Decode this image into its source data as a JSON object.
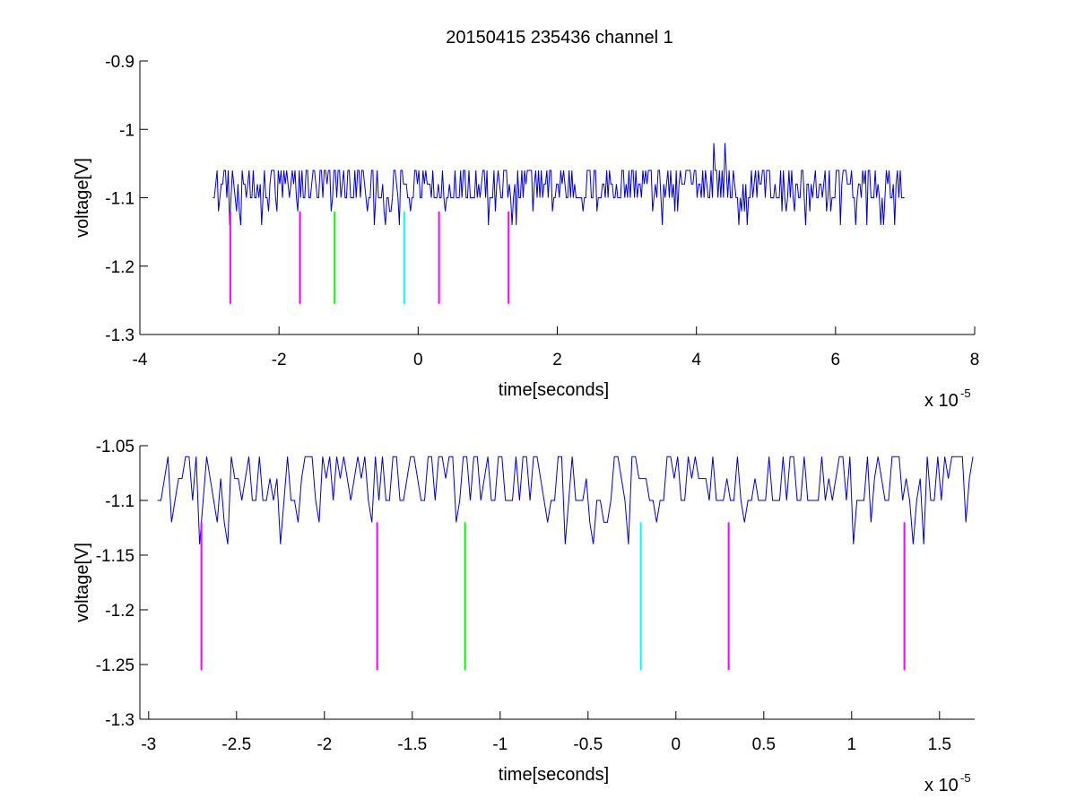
{
  "figure": {
    "title": "20150415 235436 channel 1"
  },
  "chart_data": [
    {
      "type": "line",
      "title": "20150415 235436 channel 1",
      "xlabel": "time[seconds]",
      "ylabel": "voltage[V]",
      "x_multiplier": "x 10",
      "x_multiplier_exp": "-5",
      "xlim": [
        -4,
        8
      ],
      "ylim": [
        -1.3,
        -0.9
      ],
      "xticks": [
        -4,
        -2,
        0,
        2,
        4,
        6,
        8
      ],
      "yticks": [
        -1.3,
        -1.2,
        -1.1,
        -1,
        -0.9
      ],
      "xtick_labels": [
        "-4",
        "-2",
        "0",
        "2",
        "4",
        "6",
        "8"
      ],
      "ytick_labels": [
        "-1.3",
        "-1.2",
        "-1.1",
        "-1",
        "-0.9"
      ],
      "grid": false,
      "series": [
        {
          "color": "#0000cc",
          "x_range": [
            -2.95,
            7.0
          ],
          "baseline": -1.1,
          "levels": [
            -1.14,
            -1.12,
            -1.1,
            -1.08,
            -1.06
          ],
          "spikes": [
            {
              "x": 4.25,
              "y": -1.02
            },
            {
              "x": 4.4,
              "y": -1.02
            }
          ]
        }
      ],
      "markers": [
        {
          "x": -2.7,
          "y_top": -1.12,
          "y_bottom": -1.255,
          "color": "#ff00ff"
        },
        {
          "x": -1.7,
          "y_top": -1.12,
          "y_bottom": -1.255,
          "color": "#ff00ff"
        },
        {
          "x": -1.2,
          "y_top": -1.12,
          "y_bottom": -1.255,
          "color": "#00ff00"
        },
        {
          "x": -0.2,
          "y_top": -1.12,
          "y_bottom": -1.255,
          "color": "#00ffff"
        },
        {
          "x": 0.3,
          "y_top": -1.12,
          "y_bottom": -1.255,
          "color": "#ff00ff"
        },
        {
          "x": 1.3,
          "y_top": -1.12,
          "y_bottom": -1.255,
          "color": "#ff00ff"
        }
      ]
    },
    {
      "type": "line",
      "title": "",
      "xlabel": "time[seconds]",
      "ylabel": "voltage[V]",
      "x_multiplier": "x 10",
      "x_multiplier_exp": "-5",
      "xlim": [
        -3.05,
        1.7
      ],
      "ylim": [
        -1.3,
        -1.05
      ],
      "xticks": [
        -3,
        -2.5,
        -2,
        -1.5,
        -1,
        -0.5,
        0,
        0.5,
        1,
        1.5
      ],
      "yticks": [
        -1.3,
        -1.25,
        -1.2,
        -1.15,
        -1.1,
        -1.05
      ],
      "xtick_labels": [
        "-3",
        "-2.5",
        "-2",
        "-1.5",
        "-1",
        "-0.5",
        "0",
        "0.5",
        "1",
        "1.5"
      ],
      "ytick_labels": [
        "-1.3",
        "-1.25",
        "-1.2",
        "-1.15",
        "-1.1",
        "-1.05"
      ],
      "grid": false,
      "series": [
        {
          "color": "#0000cc",
          "x_range": [
            -2.95,
            1.7
          ],
          "baseline": -1.1,
          "levels": [
            -1.14,
            -1.12,
            -1.1,
            -1.08,
            -1.06
          ],
          "spikes": []
        }
      ],
      "markers": [
        {
          "x": -2.7,
          "y_top": -1.12,
          "y_bottom": -1.255,
          "color": "#ff00ff"
        },
        {
          "x": -1.7,
          "y_top": -1.12,
          "y_bottom": -1.255,
          "color": "#ff00ff"
        },
        {
          "x": -1.2,
          "y_top": -1.12,
          "y_bottom": -1.255,
          "color": "#00ff00"
        },
        {
          "x": -0.2,
          "y_top": -1.12,
          "y_bottom": -1.255,
          "color": "#00ffff"
        },
        {
          "x": 0.3,
          "y_top": -1.12,
          "y_bottom": -1.255,
          "color": "#ff00ff"
        },
        {
          "x": 1.3,
          "y_top": -1.12,
          "y_bottom": -1.255,
          "color": "#ff00ff"
        }
      ]
    }
  ]
}
